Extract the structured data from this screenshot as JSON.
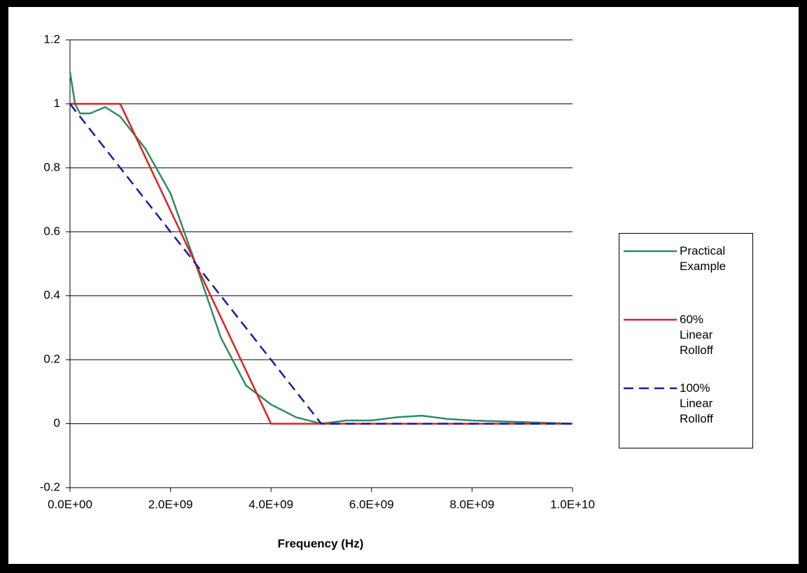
{
  "chart_data": {
    "type": "line",
    "x_label": "Frequency (Hz)",
    "xlim": [
      0,
      10000000000
    ],
    "xticks": [
      {
        "value": 0,
        "label": "0.0E+00"
      },
      {
        "value": 2000000000,
        "label": "2.0E+09"
      },
      {
        "value": 4000000000,
        "label": "4.0E+09"
      },
      {
        "value": 6000000000,
        "label": "6.0E+09"
      },
      {
        "value": 8000000000,
        "label": "8.0E+09"
      },
      {
        "value": 10000000000,
        "label": "1.0E+10"
      }
    ],
    "ylim": [
      -0.2,
      1.2
    ],
    "yticks": [
      -0.2,
      0,
      0.2,
      0.4,
      0.6,
      0.8,
      1,
      1.2
    ],
    "grid": true,
    "legend": "right",
    "series": [
      {
        "name": "Practical Example",
        "color": "#2e8b63",
        "dash": false,
        "x": [
          0,
          100000000,
          200000000,
          400000000,
          700000000,
          1000000000,
          1500000000,
          2000000000,
          2500000000,
          3000000000,
          3500000000,
          4000000000,
          4500000000,
          5000000000,
          5500000000,
          6000000000,
          6500000000,
          7000000000,
          7500000000,
          8000000000,
          9000000000,
          10000000000
        ],
        "values": [
          1.1,
          1.0,
          0.97,
          0.97,
          0.99,
          0.96,
          0.86,
          0.72,
          0.5,
          0.27,
          0.12,
          0.06,
          0.02,
          0.0,
          0.01,
          0.01,
          0.02,
          0.025,
          0.015,
          0.01,
          0.005,
          0.0
        ]
      },
      {
        "name": "60% Linear Rolloff",
        "color": "#e02020",
        "dash": false,
        "x": [
          0,
          1000000000,
          4000000000,
          10000000000
        ],
        "values": [
          1,
          1,
          0,
          0
        ]
      },
      {
        "name": "100% Linear Rolloff",
        "color": "#1a1aa8",
        "dash": true,
        "x": [
          0,
          5000000000,
          10000000000
        ],
        "values": [
          1,
          0,
          0
        ]
      }
    ]
  }
}
